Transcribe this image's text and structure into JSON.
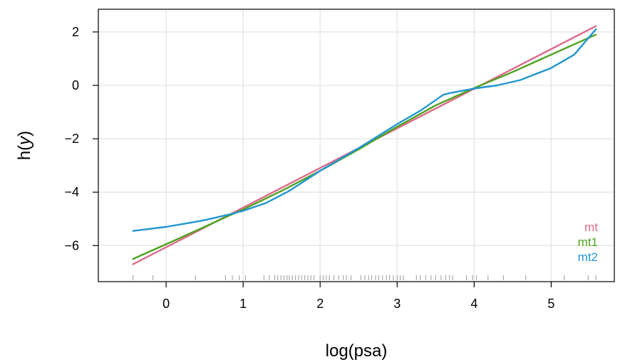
{
  "chart_data": {
    "type": "line",
    "xlabel": "log(psa)",
    "ylabel_main": "h(",
    "ylabel_var": "y",
    "ylabel_close": ")",
    "xlim": [
      -0.88,
      5.82
    ],
    "ylim": [
      -7.35,
      2.85
    ],
    "x_ticks": [
      0,
      1,
      2,
      3,
      4,
      5
    ],
    "y_ticks": [
      -6,
      -4,
      -2,
      0,
      2
    ],
    "x_tick_labels": [
      "0",
      "1",
      "2",
      "3",
      "4",
      "5"
    ],
    "y_tick_labels": [
      "−6",
      "−4",
      "−2",
      "0",
      "2"
    ],
    "grid": true,
    "legend_position": "bottom-right",
    "series": [
      {
        "name": "mt",
        "color": "#DF6A8A",
        "x": [
          -0.43,
          5.58
        ],
        "y": [
          -6.7,
          2.22
        ]
      },
      {
        "name": "mt1",
        "color": "#4DA21F",
        "x": [
          -0.43,
          0.0,
          0.5,
          0.8,
          1.0,
          1.5,
          2.0,
          2.5,
          3.0,
          3.5,
          4.0,
          4.5,
          5.0,
          5.58
        ],
        "y": [
          -6.5,
          -5.95,
          -5.3,
          -4.9,
          -4.65,
          -3.95,
          -3.2,
          -2.4,
          -1.55,
          -0.75,
          -0.1,
          0.5,
          1.15,
          1.9
        ]
      },
      {
        "name": "mt2",
        "color": "#2196D3",
        "x": [
          -0.43,
          0.0,
          0.3,
          0.5,
          0.8,
          1.0,
          1.3,
          1.6,
          2.0,
          2.5,
          3.0,
          3.3,
          3.5,
          3.6,
          3.7,
          4.0,
          4.3,
          4.6,
          5.0,
          5.3,
          5.58
        ],
        "y": [
          -5.45,
          -5.3,
          -5.15,
          -5.05,
          -4.85,
          -4.7,
          -4.4,
          -3.95,
          -3.2,
          -2.35,
          -1.45,
          -0.95,
          -0.55,
          -0.35,
          -0.28,
          -0.12,
          0.0,
          0.2,
          0.65,
          1.15,
          2.1
        ]
      }
    ],
    "rug_x": [
      -0.43,
      -0.17,
      0.38,
      0.77,
      0.86,
      0.95,
      1.03,
      1.27,
      1.34,
      1.41,
      1.45,
      1.49,
      1.53,
      1.57,
      1.6,
      1.64,
      1.68,
      1.72,
      1.76,
      1.8,
      1.84,
      1.88,
      1.92,
      2.0,
      2.04,
      2.08,
      2.12,
      2.18,
      2.24,
      2.3,
      2.34,
      2.4,
      2.53,
      2.58,
      2.63,
      2.67,
      2.72,
      2.76,
      2.81,
      2.86,
      2.9,
      2.95,
      3.0,
      3.04,
      3.08,
      3.25,
      3.3,
      3.37,
      3.44,
      3.5,
      3.57,
      3.63,
      3.68,
      3.72,
      3.9,
      3.98,
      4.03,
      4.18,
      4.38,
      4.67,
      5.17,
      5.48,
      5.58
    ]
  }
}
